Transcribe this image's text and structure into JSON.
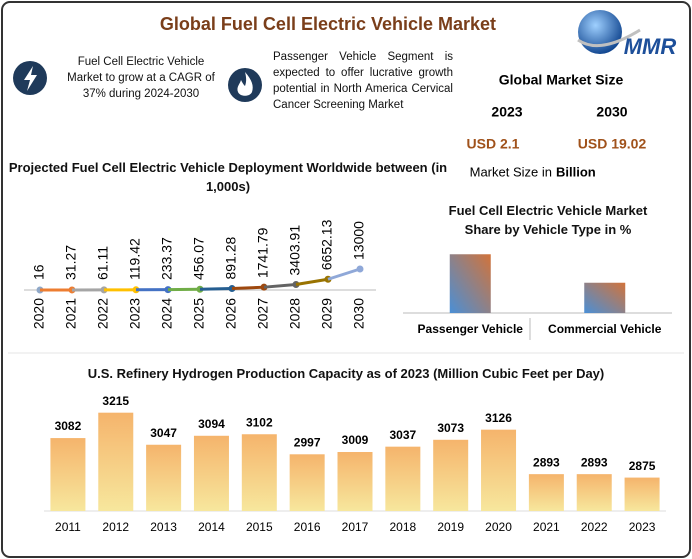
{
  "header": {
    "title": "Global Fuel Cell Electric Vehicle Market",
    "logo": "MMR"
  },
  "highlights": [
    {
      "text": "Fuel Cell Electric Vehicle Market to grow at a CAGR of 37% during 2024-2030"
    },
    {
      "text": "Passenger Vehicle Segment is expected to offer lucrative growth potential in North America Cervical Cancer Screening Market"
    }
  ],
  "market_size": {
    "title": "Global Market Size",
    "years": [
      "2023",
      "2030"
    ],
    "values": [
      "USD 2.1",
      "USD 19.02"
    ],
    "note": "Market Size in",
    "note_unit": "Billion"
  },
  "chart_data": [
    {
      "type": "line",
      "title": "Projected Fuel Cell Electric Vehicle Deployment Worldwide between (in 1,000s)",
      "categories": [
        "2020",
        "2021",
        "2022",
        "2023",
        "2024",
        "2025",
        "2026",
        "2027",
        "2028",
        "2029",
        "2030"
      ],
      "values": [
        16,
        31.27,
        61.11,
        119.42,
        233.37,
        456.07,
        891.28,
        1741.79,
        3403.91,
        6652.13,
        13000
      ],
      "colors": [
        "#8fa8c8",
        "#ed7d31",
        "#a5a5a5",
        "#ffc000",
        "#4472c4",
        "#70ad47",
        "#255e91",
        "#9e480e",
        "#636363",
        "#997300",
        "#8fa8d8"
      ],
      "ylim": [
        0,
        13000
      ]
    },
    {
      "type": "bar",
      "title": "Fuel Cell Electric Vehicle Market Share by Vehicle Type in %",
      "categories": [
        "Passenger Vehicle",
        "Commercial Vehicle"
      ],
      "values": [
        66,
        34
      ],
      "colors": [
        "#4a8fd6",
        "#d2733a"
      ],
      "ylim": [
        0,
        100
      ]
    },
    {
      "type": "bar",
      "title": "U.S. Refinery Hydrogen Production Capacity as of 2023 (Million Cubic Feet per Day)",
      "categories": [
        "2011",
        "2012",
        "2013",
        "2014",
        "2015",
        "2016",
        "2017",
        "2018",
        "2019",
        "2020",
        "2021",
        "2022",
        "2023"
      ],
      "values": [
        3082,
        3215,
        3047,
        3094,
        3102,
        2997,
        3009,
        3037,
        3073,
        3126,
        2893,
        2893,
        2875
      ],
      "colors": [
        "#f7e79d",
        "#f5b46c"
      ],
      "ylim": [
        2700,
        3250
      ],
      "show_values": true
    }
  ]
}
